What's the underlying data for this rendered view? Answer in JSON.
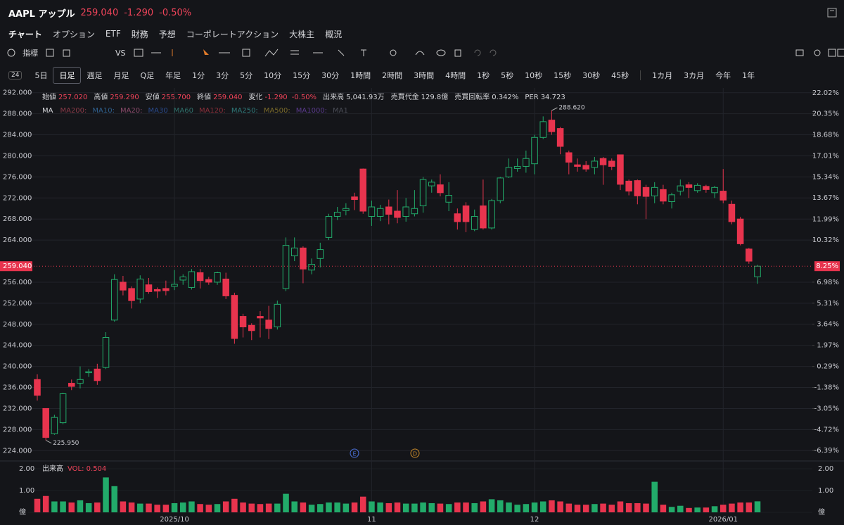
{
  "header": {
    "symbol": "AAPL アップル",
    "price": "259.040",
    "change": "-1.290",
    "change_pct": "-0.50%"
  },
  "tabs": [
    "チャート",
    "オプション",
    "ETF",
    "財務",
    "予想",
    "コーポレートアクション",
    "大株主",
    "概況"
  ],
  "toolbar": {
    "indicators": "指標",
    "vs": "VS"
  },
  "timeframes": {
    "selector": "24",
    "selected": "日足",
    "items": [
      "5日",
      "日足",
      "週足",
      "月足",
      "Q足",
      "年足",
      "1分",
      "3分",
      "5分",
      "10分",
      "15分",
      "30分",
      "1時間",
      "2時間",
      "3時間",
      "4時間",
      "1秒",
      "5秒",
      "10秒",
      "15秒",
      "30秒",
      "45秒"
    ],
    "ranges": [
      "1カ月",
      "3カ月",
      "今年",
      "1年"
    ]
  },
  "info": {
    "items": [
      {
        "label": "始値",
        "value": "257.020",
        "color": "#f0445a"
      },
      {
        "label": "高値",
        "value": "259.290",
        "color": "#f0445a"
      },
      {
        "label": "安値",
        "value": "255.700",
        "color": "#f0445a"
      },
      {
        "label": "終値",
        "value": "259.040",
        "color": "#f0445a"
      },
      {
        "label": "変化",
        "value": "-1.290",
        "extra": "-0.50%",
        "color": "#f0445a"
      },
      {
        "label": "出来高",
        "value": "5,041.93万",
        "color": "#d8d9dd"
      },
      {
        "label": "売買代金",
        "value": "129.8億",
        "color": "#d8d9dd"
      },
      {
        "label": "売買回転率",
        "value": "0.342%",
        "color": "#d8d9dd"
      },
      {
        "label": "PER",
        "value": "34.723",
        "color": "#d8d9dd"
      }
    ]
  },
  "ma": {
    "label": "MA",
    "lines": [
      {
        "name": "MA200:",
        "color": "#8a3a48"
      },
      {
        "name": "MA10:",
        "color": "#2f5f8c"
      },
      {
        "name": "MA20:",
        "color": "#8a4a6a"
      },
      {
        "name": "MA30",
        "color": "#2a4a8c"
      },
      {
        "name": "MA60",
        "color": "#2f6f6a"
      },
      {
        "name": "MA120:",
        "color": "#8a2f3a"
      },
      {
        "name": "MA250:",
        "color": "#2f7a7a"
      },
      {
        "name": "MA500:",
        "color": "#7a6a2a"
      },
      {
        "name": "MA1000:",
        "color": "#5a3a8c"
      },
      {
        "name": "MA1",
        "color": "#4a4c55"
      }
    ]
  },
  "events": [
    {
      "label": "E",
      "color": "#4a6fd8"
    },
    {
      "label": "D",
      "color": "#c98a2a"
    }
  ],
  "chart_data": [
    {
      "type": "candlestick",
      "up_color": "#22ab6a",
      "down_color": "#e8344e",
      "categories": [
        null,
        null,
        null,
        null,
        null,
        null,
        null,
        null,
        null,
        null,
        null,
        null,
        null,
        null,
        null,
        null,
        "2025/10",
        null,
        null,
        null,
        null,
        null,
        null,
        null,
        null,
        null,
        null,
        null,
        null,
        null,
        null,
        null,
        null,
        null,
        null,
        null,
        null,
        null,
        null,
        "11",
        null,
        null,
        null,
        null,
        null,
        null,
        null,
        null,
        null,
        null,
        null,
        null,
        null,
        null,
        null,
        null,
        null,
        null,
        "12",
        null,
        null,
        null,
        null,
        null,
        null,
        null,
        null,
        null,
        null,
        null,
        null,
        null,
        null,
        null,
        null,
        null,
        null,
        null,
        null,
        null,
        "2026/01",
        null,
        null,
        null,
        null
      ],
      "open": [
        237.5,
        232,
        227.2,
        229.3,
        236.8,
        236.8,
        238.8,
        239.5,
        239.8,
        248.8,
        256,
        254.8,
        252.8,
        255.5,
        254.6,
        254.8,
        255.2,
        256.4,
        255,
        257.8,
        256.5,
        256,
        256.6,
        253.5,
        249.5,
        247.8,
        249.5,
        248.8,
        247.5,
        254.8,
        261,
        262.5,
        258.3,
        260.5,
        264.5,
        268.5,
        269.6,
        272.2,
        277.5,
        268.5,
        268.5,
        270.3,
        269.5,
        268.5,
        269,
        270.5,
        274.3,
        274.5,
        271.2,
        269,
        270.5,
        266,
        270.5,
        266.3,
        271.5,
        276,
        277.6,
        278,
        278.5,
        283.5,
        286.8,
        285.2,
        280.6,
        278.3,
        278.2,
        277.8,
        279.5,
        279,
        280.2,
        275.2,
        275.3,
        274,
        272.4,
        273.6,
        271.3,
        273.3,
        274.5,
        273.4,
        274.2,
        273,
        273.3,
        270.8,
        268,
        262.3,
        257.02
      ],
      "high": [
        238.5,
        232,
        230.8,
        235,
        237.5,
        240,
        239.5,
        240.5,
        246.5,
        257.5,
        257.2,
        255.2,
        257.3,
        256.8,
        255,
        256.3,
        258.3,
        257.5,
        258.5,
        258.5,
        257,
        258,
        257.8,
        254,
        250,
        248.2,
        250.5,
        251.5,
        252.5,
        264.5,
        264.5,
        262.8,
        260.5,
        263.5,
        269,
        270.3,
        271,
        273,
        277.6,
        271.5,
        270.7,
        271.7,
        273.5,
        272,
        273.5,
        276,
        275.5,
        276.5,
        275,
        270,
        271.2,
        269.8,
        275.5,
        271.8,
        276,
        279.5,
        279.5,
        281,
        284,
        287.5,
        288.62,
        285.5,
        281,
        279.5,
        279,
        279.8,
        279.8,
        279.5,
        280.2,
        275.5,
        275.5,
        274.5,
        275,
        274.5,
        273,
        275.5,
        275,
        274.8,
        274.5,
        274.3,
        277.5,
        271.5,
        268.4,
        262.5,
        259.29
      ],
      "low": [
        233.5,
        225.95,
        227,
        229,
        235.5,
        235.8,
        238,
        236.5,
        239.5,
        248.5,
        253.5,
        251,
        252,
        253.8,
        253,
        253.5,
        254.5,
        255.5,
        254.6,
        254.8,
        255.5,
        255.5,
        252.8,
        244.3,
        245.5,
        245,
        245.5,
        245.2,
        247,
        254.3,
        260,
        255.8,
        257.5,
        258.8,
        264,
        267.8,
        268.7,
        269.7,
        269,
        266.7,
        267.6,
        267,
        267.2,
        267.5,
        268.5,
        269.2,
        273,
        272.3,
        269.5,
        266,
        265.5,
        265.7,
        266,
        266,
        271,
        275.8,
        277,
        276.8,
        276.5,
        283.2,
        284,
        280.3,
        276.5,
        277,
        277,
        276.5,
        274.5,
        277.3,
        273.5,
        272.5,
        270.8,
        268,
        271,
        270.8,
        270,
        272.5,
        272,
        273,
        273,
        272,
        271,
        267,
        263,
        259.5,
        255.7
      ],
      "close": [
        234.5,
        226.5,
        230.3,
        234.8,
        236.2,
        237.5,
        239,
        237.3,
        245.5,
        256.5,
        254.5,
        252.5,
        256.6,
        254.2,
        254.3,
        254.4,
        255.6,
        257,
        258,
        256.3,
        256,
        257.8,
        253.4,
        245.3,
        247.5,
        246.8,
        249.2,
        247.2,
        251.8,
        263,
        262.5,
        258.5,
        259.4,
        262.2,
        268.5,
        269.3,
        270,
        271.7,
        269.5,
        270.3,
        270,
        268.9,
        268.3,
        270.3,
        270,
        275.5,
        275,
        273,
        272.5,
        267.5,
        267.5,
        268.5,
        266.3,
        271.5,
        275.8,
        277.8,
        278,
        279.5,
        283.5,
        286.5,
        284.6,
        281.8,
        278.8,
        278,
        277.5,
        279,
        278.3,
        278,
        274.6,
        273.3,
        272.4,
        272.3,
        274,
        271.4,
        272.6,
        274.3,
        274,
        274.4,
        273.6,
        274,
        271.6,
        267.5,
        263.3,
        260,
        259.04
      ],
      "ylim": [
        222.7,
        292.9
      ],
      "yticks": [
        {
          "value": 292,
          "label": "292.000"
        },
        {
          "value": 288,
          "label": "288.000"
        },
        {
          "value": 284,
          "label": "284.000"
        },
        {
          "value": 280,
          "label": "280.000"
        },
        {
          "value": 276,
          "label": "276.000"
        },
        {
          "value": 272,
          "label": "272.000"
        },
        {
          "value": 268,
          "label": "268.000"
        },
        {
          "value": 264,
          "label": "264.000"
        },
        {
          "value": 256,
          "label": "256.000"
        },
        {
          "value": 252,
          "label": "252.000"
        },
        {
          "value": 248,
          "label": "248.000"
        },
        {
          "value": 244,
          "label": "244.000"
        },
        {
          "value": 240,
          "label": "240.000"
        },
        {
          "value": 236,
          "label": "236.000"
        },
        {
          "value": 232,
          "label": "232.000"
        },
        {
          "value": 228,
          "label": "228.000"
        },
        {
          "value": 224,
          "label": "224.000"
        }
      ],
      "y2lim": [
        -6.94,
        22.4
      ],
      "y2ticks": [
        {
          "value": 22.02,
          "label": "22.02%"
        },
        {
          "value": 20.35,
          "label": "20.35%"
        },
        {
          "value": 18.68,
          "label": "18.68%"
        },
        {
          "value": 17.01,
          "label": "17.01%"
        },
        {
          "value": 15.34,
          "label": "15.34%"
        },
        {
          "value": 13.67,
          "label": "13.67%"
        },
        {
          "value": 11.99,
          "label": "11.99%"
        },
        {
          "value": 10.32,
          "label": "10.32%"
        },
        {
          "value": 6.98,
          "label": "6.98%"
        },
        {
          "value": 5.31,
          "label": "5.31%"
        },
        {
          "value": 3.64,
          "label": "3.64%"
        },
        {
          "value": 1.97,
          "label": "1.97%"
        },
        {
          "value": 0.29,
          "label": "0.29%"
        },
        {
          "value": -1.38,
          "label": "-1.38%"
        },
        {
          "value": -3.05,
          "label": "-3.05%"
        },
        {
          "value": -4.72,
          "label": "-4.72%"
        },
        {
          "value": -6.39,
          "label": "-6.39%"
        }
      ],
      "last_price": {
        "value": 259.04,
        "label": "259.040"
      },
      "last_pct": {
        "value": 8.25,
        "label": "8.25%"
      },
      "annotations": [
        {
          "value": 288.62,
          "label": "288.620",
          "of": "high"
        },
        {
          "value": 225.95,
          "label": "225.950",
          "of": "low"
        }
      ],
      "grid": true
    },
    {
      "type": "bar",
      "title": "出来高",
      "legend": "VOL: 0.504",
      "values": [
        0.62,
        0.75,
        0.5,
        0.5,
        0.45,
        0.55,
        0.42,
        0.45,
        1.6,
        1.2,
        0.5,
        0.45,
        0.4,
        0.4,
        0.35,
        0.35,
        0.42,
        0.45,
        0.5,
        0.38,
        0.35,
        0.38,
        0.5,
        0.62,
        0.45,
        0.4,
        0.38,
        0.4,
        0.4,
        0.85,
        0.5,
        0.45,
        0.35,
        0.38,
        0.45,
        0.45,
        0.4,
        0.45,
        0.72,
        0.5,
        0.45,
        0.42,
        0.45,
        0.4,
        0.4,
        0.45,
        0.42,
        0.4,
        0.38,
        0.45,
        0.45,
        0.42,
        0.5,
        0.6,
        0.55,
        0.45,
        0.35,
        0.38,
        0.45,
        0.5,
        0.55,
        0.5,
        0.4,
        0.35,
        0.35,
        0.38,
        0.4,
        0.35,
        0.5,
        0.42,
        0.42,
        0.4,
        1.4,
        0.35,
        0.25,
        0.3,
        0.2,
        0.22,
        0.22,
        0.28,
        0.35,
        0.4,
        0.45,
        0.45,
        0.504
      ],
      "ylim": [
        0,
        2.29
      ],
      "yticks": [
        {
          "value": 2,
          "label": "2.00"
        },
        {
          "value": 1,
          "label": "1.00"
        },
        {
          "value": 0,
          "label": "億"
        }
      ]
    }
  ]
}
